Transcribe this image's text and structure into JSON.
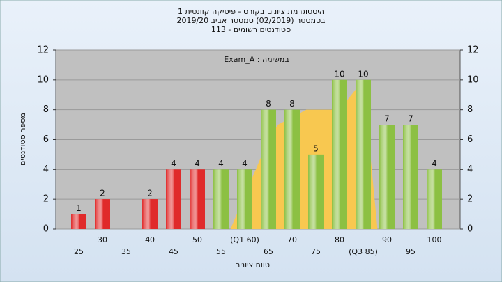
{
  "chart_data": {
    "type": "bar",
    "title_lines": [
      "היסטוגרמת ציונים בקורס - פיסיקה קוונטית 1",
      "בסמסטר  (02/2019)  סמסטר אביב 2019/20",
      "סטודנטים רשומים - 113"
    ],
    "annotation": "במשימה : Exam_A",
    "y_label": "מספר סטודנטים",
    "x_label": "טווח ציונים",
    "categories": [
      "25",
      "30",
      "35",
      "40",
      "45",
      "50",
      "55",
      "(Q1 60)",
      "65",
      "70",
      "75",
      "80",
      "(Q3 85)",
      "90",
      "95",
      "100"
    ],
    "values": [
      1,
      2,
      0,
      2,
      4,
      4,
      4,
      4,
      8,
      8,
      5,
      10,
      10,
      7,
      7,
      4
    ],
    "colors": [
      "#e02a2a",
      "#e02a2a",
      "#e02a2a",
      "#e02a2a",
      "#e02a2a",
      "#e02a2a",
      "#8cc043",
      "#8cc043",
      "#8cc043",
      "#8cc043",
      "#8cc043",
      "#8cc043",
      "#8cc043",
      "#8cc043",
      "#8cc043",
      "#8cc043"
    ],
    "area": {
      "x": [
        57,
        65,
        67,
        73,
        80,
        85,
        88
      ],
      "values": [
        0,
        6,
        7,
        8,
        8,
        10,
        0
      ],
      "color": "#f8c850"
    },
    "ylim": [
      0,
      12
    ],
    "yticks": [
      0,
      2,
      4,
      6,
      8,
      10,
      12
    ],
    "y2lim": [
      0,
      12
    ],
    "y2ticks": [
      0,
      2,
      4,
      6,
      8,
      10,
      12
    ],
    "grid": true
  }
}
